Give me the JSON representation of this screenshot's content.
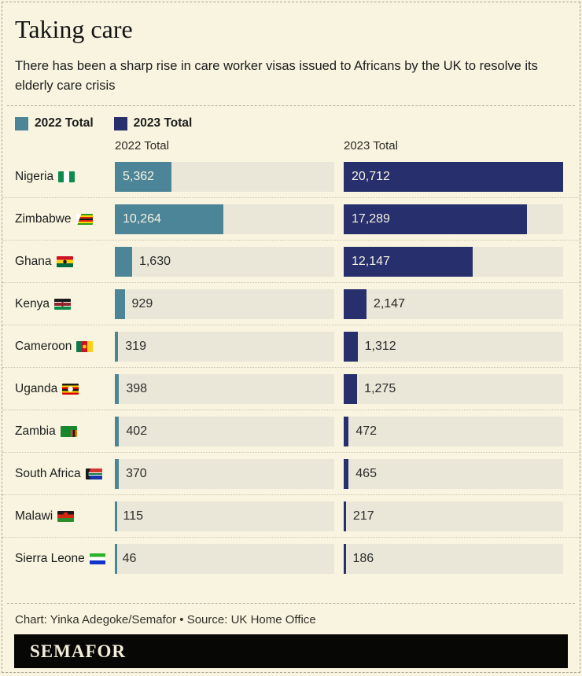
{
  "header": {
    "title": "Taking care",
    "subtitle": "There has been a sharp rise in care worker visas issued to Africans by the UK to resolve its elderly care crisis"
  },
  "columns": [
    "2022 Total",
    "2023 Total"
  ],
  "chart_data": {
    "type": "bar",
    "orientation": "horizontal",
    "title": "Taking care",
    "subtitle": "There has been a sharp rise in care worker visas issued to Africans by the UK to resolve its elderly care crisis",
    "categories": [
      "Nigeria",
      "Zimbabwe",
      "Ghana",
      "Kenya",
      "Cameroon",
      "Uganda",
      "Zambia",
      "South Africa",
      "Malawi",
      "Sierra Leone"
    ],
    "series": [
      {
        "name": "2022 Total",
        "color": "#4c8598",
        "values": [
          5362,
          10264,
          1630,
          929,
          319,
          398,
          402,
          370,
          115,
          46
        ]
      },
      {
        "name": "2023 Total",
        "color": "#272f6d",
        "values": [
          20712,
          17289,
          12147,
          2147,
          1312,
          1275,
          472,
          465,
          217,
          186
        ]
      }
    ],
    "xlim": [
      0,
      20712
    ],
    "grid": false,
    "legend_position": "top",
    "value_labels": true
  },
  "rows": [
    {
      "country": "Nigeria",
      "flag": "nigeria-flag",
      "values": [
        5362,
        20712
      ],
      "display": [
        "5,362",
        "20,712"
      ],
      "flag_css": "background:linear-gradient(90deg,#108b4f 0 34%,#fff 34% 66%,#108b4f 66%)"
    },
    {
      "country": "Zimbabwe",
      "flag": "zimbabwe-flag",
      "values": [
        10264,
        17289
      ],
      "display": [
        "10,264",
        "17,289"
      ],
      "flag_css": "background:linear-gradient(110deg,#fff 24%,rgba(0,0,0,0) 25%),linear-gradient(180deg,#2f9e1e 0 14%,#ffd200 14% 28%,#d62612 28% 42%,#151515 42% 58%,#d62612 58% 72%,#ffd200 72% 86%,#2f9e1e 86%)"
    },
    {
      "country": "Ghana",
      "flag": "ghana-flag",
      "values": [
        1630,
        12147
      ],
      "display": [
        "1,630",
        "12,147"
      ],
      "flag_css": "background:radial-gradient(circle at 50% 50%,#1a1a1a 0 2px,rgba(0,0,0,0) 2.6px),linear-gradient(180deg,#cf1126 0 33%,#fcd116 33% 66%,#006b3f 66%)"
    },
    {
      "country": "Kenya",
      "flag": "kenya-flag",
      "values": [
        929,
        2147
      ],
      "display": [
        "929",
        "2,147"
      ],
      "flag_css": "background:radial-gradient(ellipse 3px 5px at 50% 50%,#8d2129 0 60%,rgba(0,0,0,0) 62%),linear-gradient(180deg,#1a1a1a 0 28%,#fff 28% 36%,#922529 36% 64%,#fff 64% 72%,#0e8a47 72%)"
    },
    {
      "country": "Cameroon",
      "flag": "cameroon-flag",
      "values": [
        319,
        1312
      ],
      "display": [
        "319",
        "1,312"
      ],
      "flag_css": "background:radial-gradient(circle at 50% 50%,#fcd116 0 2px,rgba(0,0,0,0) 2.6px),linear-gradient(90deg,#0e7a4e 0 33%,#cf1126 33% 66%,#fcd116 66%)"
    },
    {
      "country": "Uganda",
      "flag": "uganda-flag",
      "values": [
        398,
        1275
      ],
      "display": [
        "398",
        "1,275"
      ],
      "flag_css": "background:radial-gradient(circle at 50% 50%,#fff 0 3px,rgba(0,0,0,0) 3.5px),linear-gradient(180deg,#1a1a1a 0 17%,#fcdc04 17% 33%,#d90000 33% 50%,#1a1a1a 50% 67%,#fcdc04 67% 83%,#d90000 83%)"
    },
    {
      "country": "Zambia",
      "flag": "zambia-flag",
      "values": [
        402,
        472
      ],
      "display": [
        "402",
        "472"
      ],
      "flag_css": "background-color:#17862c;background-image:linear-gradient(90deg,#d64727 0 34%,#1a1a1a 34% 67%,#ef7d00 67%);background-size:38% 62%;background-position:100% 100%;background-repeat:no-repeat"
    },
    {
      "country": "South Africa",
      "flag": "south-africa-flag",
      "values": [
        370,
        465
      ],
      "display": [
        "370",
        "465"
      ],
      "flag_css": "background:linear-gradient(115deg,#1a1a1a 22%,rgba(0,0,0,0) 23%),linear-gradient(65deg,#1a1a1a 22%,rgba(0,0,0,0) 23%),linear-gradient(180deg,#d8342f 0 35%,#fff 35% 43%,#0f7a4c 43% 57%,#fff 57% 65%,#1835a8 65%)"
    },
    {
      "country": "Malawi",
      "flag": "malawi-flag",
      "values": [
        115,
        217
      ],
      "display": [
        "115",
        "217"
      ],
      "flag_css": "background:radial-gradient(circle 3px at 50% 33%,#d62612 98%,rgba(0,0,0,0)),linear-gradient(180deg,#1a1a1a 0 33%,#d62612 33% 66%,#2e8b2e 66%)"
    },
    {
      "country": "Sierra Leone",
      "flag": "sierra-leone-flag",
      "values": [
        46,
        186
      ],
      "display": [
        "46",
        "186"
      ],
      "flag_css": "background:linear-gradient(180deg,#2bb32a 0 33%,#fff 33% 66%,#1133cc 66%)"
    }
  ],
  "footer": {
    "credit": "Chart: Yinka Adegoke/Semafor • Source: UK Home Office",
    "brand": "SEMAFOR"
  },
  "colors": {
    "background": "#f8f4df",
    "bar_track": "#eae7d8",
    "bar_2022": "#4c8598",
    "bar_2023": "#272f6d",
    "value_inside_text": "#f6f2e2",
    "value_outside_text": "#2b2b2b",
    "banner_bg": "#070705",
    "banner_text": "#f3eedb"
  }
}
